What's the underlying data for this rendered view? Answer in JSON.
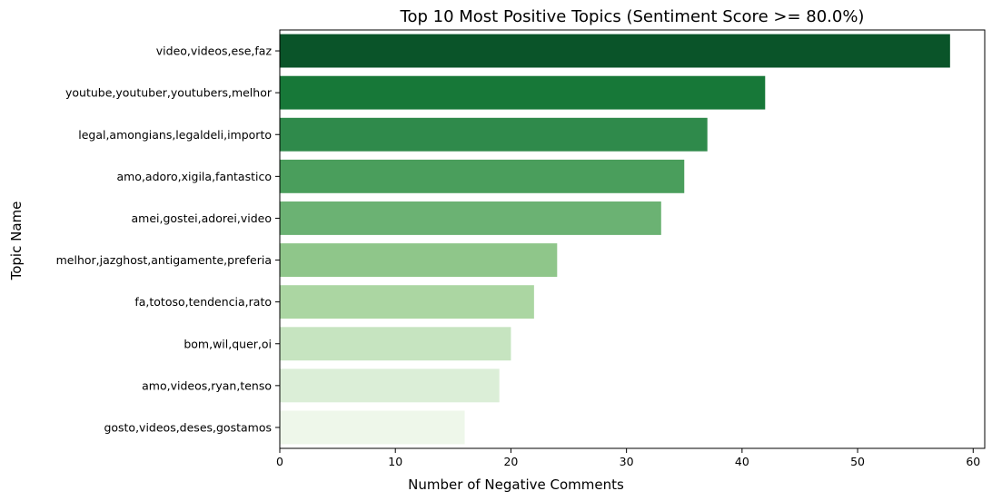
{
  "chart_data": {
    "type": "bar",
    "orientation": "horizontal",
    "title": "Top 10 Most Positive Topics (Sentiment Score >= 80.0%)",
    "xlabel": "Number of Negative Comments",
    "ylabel": "Topic Name",
    "xlim": [
      0,
      61
    ],
    "xticks": [
      0,
      10,
      20,
      30,
      40,
      50,
      60
    ],
    "grid": false,
    "legend": "none",
    "categories": [
      "video,videos,ese,faz",
      "youtube,youtuber,youtubers,melhor",
      "legal,amongians,legaldeli,importo",
      "amo,adoro,xigila,fantastico",
      "amei,gostei,adorei,video",
      "melhor,jazghost,antigamente,preferia",
      "fa,totoso,tendencia,rato",
      "bom,wil,quer,oi",
      "amo,videos,ryan,tenso",
      "gosto,videos,deses,gostamos"
    ],
    "values": [
      58,
      42,
      37,
      35,
      33,
      24,
      22,
      20,
      19,
      16
    ],
    "colors": [
      "#0a5429",
      "#177838",
      "#2f8a4b",
      "#4a9e5c",
      "#6bb273",
      "#8fc68a",
      "#abd6a2",
      "#c6e4c0",
      "#dbeed7",
      "#eef7ea"
    ]
  }
}
